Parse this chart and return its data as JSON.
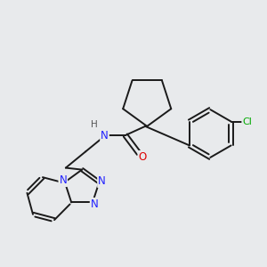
{
  "bg_color": "#e8eaec",
  "bond_color": "#1a1a1a",
  "bond_width": 1.4,
  "atom_colors": {
    "N": "#2020ff",
    "O": "#dd0000",
    "Cl": "#00aa00",
    "H": "#555555",
    "C": "#1a1a1a"
  },
  "font_size_atom": 8.5,
  "font_size_small": 7.0,
  "font_size_cl": 8.0
}
